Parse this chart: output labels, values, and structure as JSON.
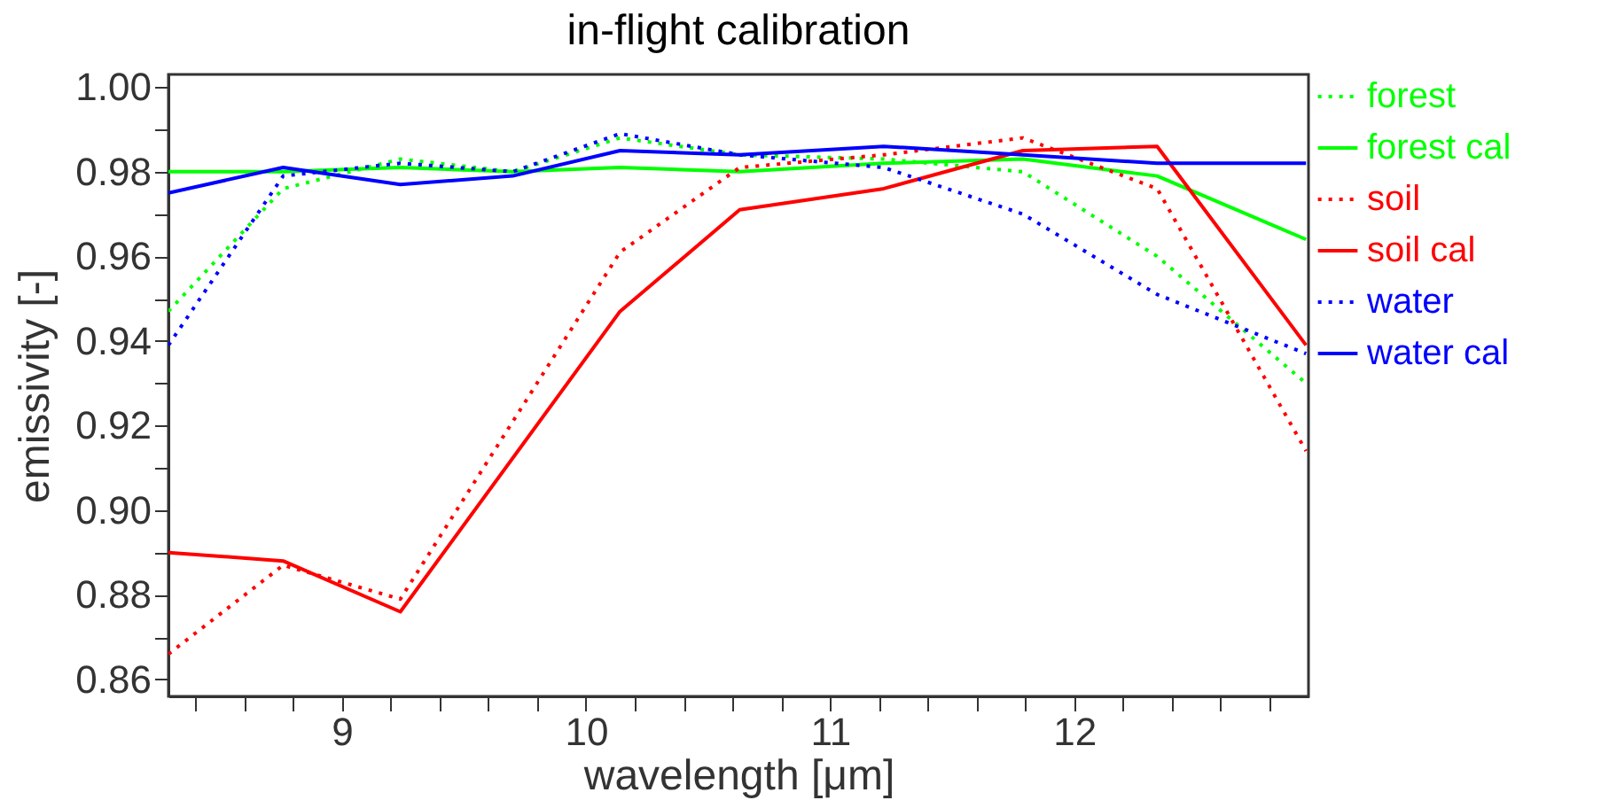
{
  "chart_data": {
    "type": "line",
    "title": "in-flight calibration",
    "xlabel": "wavelength [μm]",
    "ylabel": "emissivity [-]",
    "x": [
      8.29,
      8.76,
      9.24,
      9.7,
      10.14,
      10.63,
      11.22,
      11.79,
      12.34,
      12.95
    ],
    "series": [
      {
        "name": "forest",
        "color": "#00ff00",
        "line_style": "dotted",
        "values": [
          0.947,
          0.976,
          0.983,
          0.98,
          0.988,
          0.984,
          0.983,
          0.98,
          0.96,
          0.93
        ]
      },
      {
        "name": "forest cal",
        "color": "#00ff00",
        "line_style": "solid",
        "values": [
          0.98,
          0.98,
          0.981,
          0.98,
          0.981,
          0.98,
          0.982,
          0.983,
          0.979,
          0.964
        ]
      },
      {
        "name": "soil",
        "color": "#ff0000",
        "line_style": "dotted",
        "x": [
          8.29,
          8.76,
          9.24,
          10.14,
          10.63,
          11.22,
          11.79,
          12.34,
          12.95
        ],
        "values": [
          0.866,
          0.887,
          0.879,
          0.961,
          0.981,
          0.984,
          0.988,
          0.976,
          0.914
        ]
      },
      {
        "name": "soil cal",
        "color": "#ff0000",
        "line_style": "solid",
        "x": [
          8.29,
          8.76,
          9.24,
          10.14,
          10.63,
          11.22,
          11.79,
          12.34,
          12.95
        ],
        "values": [
          0.89,
          0.888,
          0.876,
          0.947,
          0.971,
          0.976,
          0.985,
          0.986,
          0.939
        ]
      },
      {
        "name": "water",
        "color": "#0000ff",
        "line_style": "dotted",
        "values": [
          0.939,
          0.979,
          0.982,
          0.98,
          0.989,
          0.984,
          0.981,
          0.97,
          0.951,
          0.937
        ]
      },
      {
        "name": "water cal",
        "color": "#0000ff",
        "line_style": "solid",
        "values": [
          0.975,
          0.981,
          0.977,
          0.979,
          0.985,
          0.984,
          0.986,
          0.984,
          0.982,
          0.982
        ]
      }
    ],
    "xlim": [
      8.29,
      12.96
    ],
    "xticks": [
      {
        "value": 8.4,
        "label": null
      },
      {
        "value": 8.6,
        "label": null
      },
      {
        "value": 8.8,
        "label": null
      },
      9,
      {
        "value": 9.2,
        "label": null
      },
      {
        "value": 9.4,
        "label": null
      },
      {
        "value": 9.6,
        "label": null
      },
      {
        "value": 9.8,
        "label": null
      },
      10,
      {
        "value": 10.2,
        "label": null
      },
      {
        "value": 10.4,
        "label": null
      },
      {
        "value": 10.6,
        "label": null
      },
      {
        "value": 10.8,
        "label": null
      },
      11,
      {
        "value": 11.2,
        "label": null
      },
      {
        "value": 11.4,
        "label": null
      },
      {
        "value": 11.6,
        "label": null
      },
      {
        "value": 11.8,
        "label": null
      },
      12,
      {
        "value": 12.2,
        "label": null
      },
      {
        "value": 12.4,
        "label": null
      },
      {
        "value": 12.6,
        "label": null
      },
      {
        "value": 12.8,
        "label": null
      }
    ],
    "ylim": [
      0.856,
      1.003
    ],
    "yticks": [
      0.86,
      {
        "value": 0.87,
        "label": null
      },
      0.88,
      {
        "value": 0.89,
        "label": null
      },
      {
        "value": 0.9,
        "label": "0.90"
      },
      {
        "value": 0.91,
        "label": null
      },
      0.92,
      {
        "value": 0.93,
        "label": null
      },
      0.94,
      {
        "value": 0.95,
        "label": null
      },
      0.96,
      {
        "value": 0.97,
        "label": null
      },
      0.98,
      {
        "value": 0.99,
        "label": null
      },
      {
        "value": 1,
        "label": "1.00"
      }
    ],
    "grid": false,
    "legend": "top right",
    "marker": "none"
  }
}
